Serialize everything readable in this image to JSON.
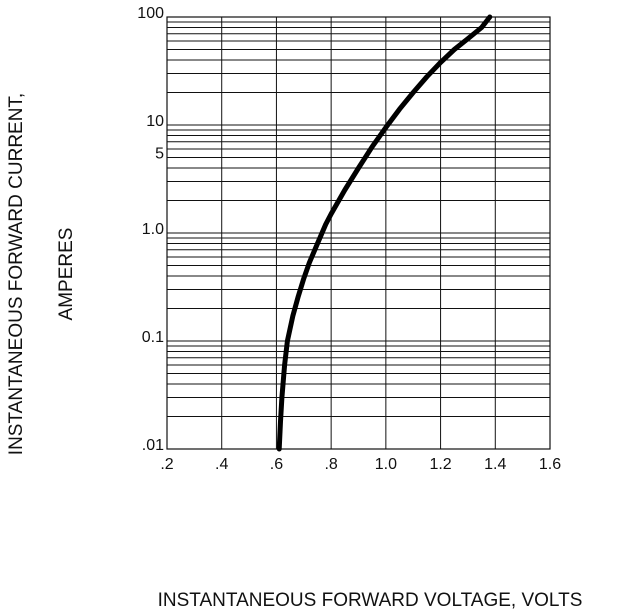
{
  "chart_data": {
    "type": "line",
    "xlabel": "INSTANTANEOUS FORWARD VOLTAGE,  VOLTS",
    "ylabel_line1": "INSTANTANEOUS FORWARD CURRENT,",
    "ylabel_line2": "AMPERES",
    "x_scale": "linear",
    "y_scale": "log",
    "xlim": [
      0.2,
      1.6
    ],
    "ylim": [
      0.01,
      100
    ],
    "grid": true,
    "x_ticks": [
      0.2,
      0.4,
      0.6,
      0.8,
      1.0,
      1.2,
      1.4,
      1.6
    ],
    "x_tick_labels": [
      ".2",
      ".4",
      ".6",
      ".8",
      "1.0",
      "1.2",
      "1.4",
      "1.6"
    ],
    "y_tick_values": [
      0.01,
      0.1,
      1.0,
      5,
      10,
      100
    ],
    "y_tick_labels": [
      ".01",
      "0.1",
      "1.0",
      "5",
      "10",
      "100"
    ],
    "series": [
      {
        "x": [
          0.61,
          0.615,
          0.62,
          0.63,
          0.64,
          0.66,
          0.68,
          0.7,
          0.72,
          0.75,
          0.78,
          0.8,
          0.85,
          0.9,
          0.95,
          1.0,
          1.05,
          1.1,
          1.15,
          1.2,
          1.25,
          1.3,
          1.35,
          1.38
        ],
        "y": [
          0.01,
          0.018,
          0.03,
          0.06,
          0.1,
          0.17,
          0.26,
          0.38,
          0.53,
          0.8,
          1.2,
          1.5,
          2.5,
          4.0,
          6.3,
          9.5,
          14,
          20,
          28,
          38,
          50,
          63,
          80,
          100
        ]
      }
    ]
  }
}
